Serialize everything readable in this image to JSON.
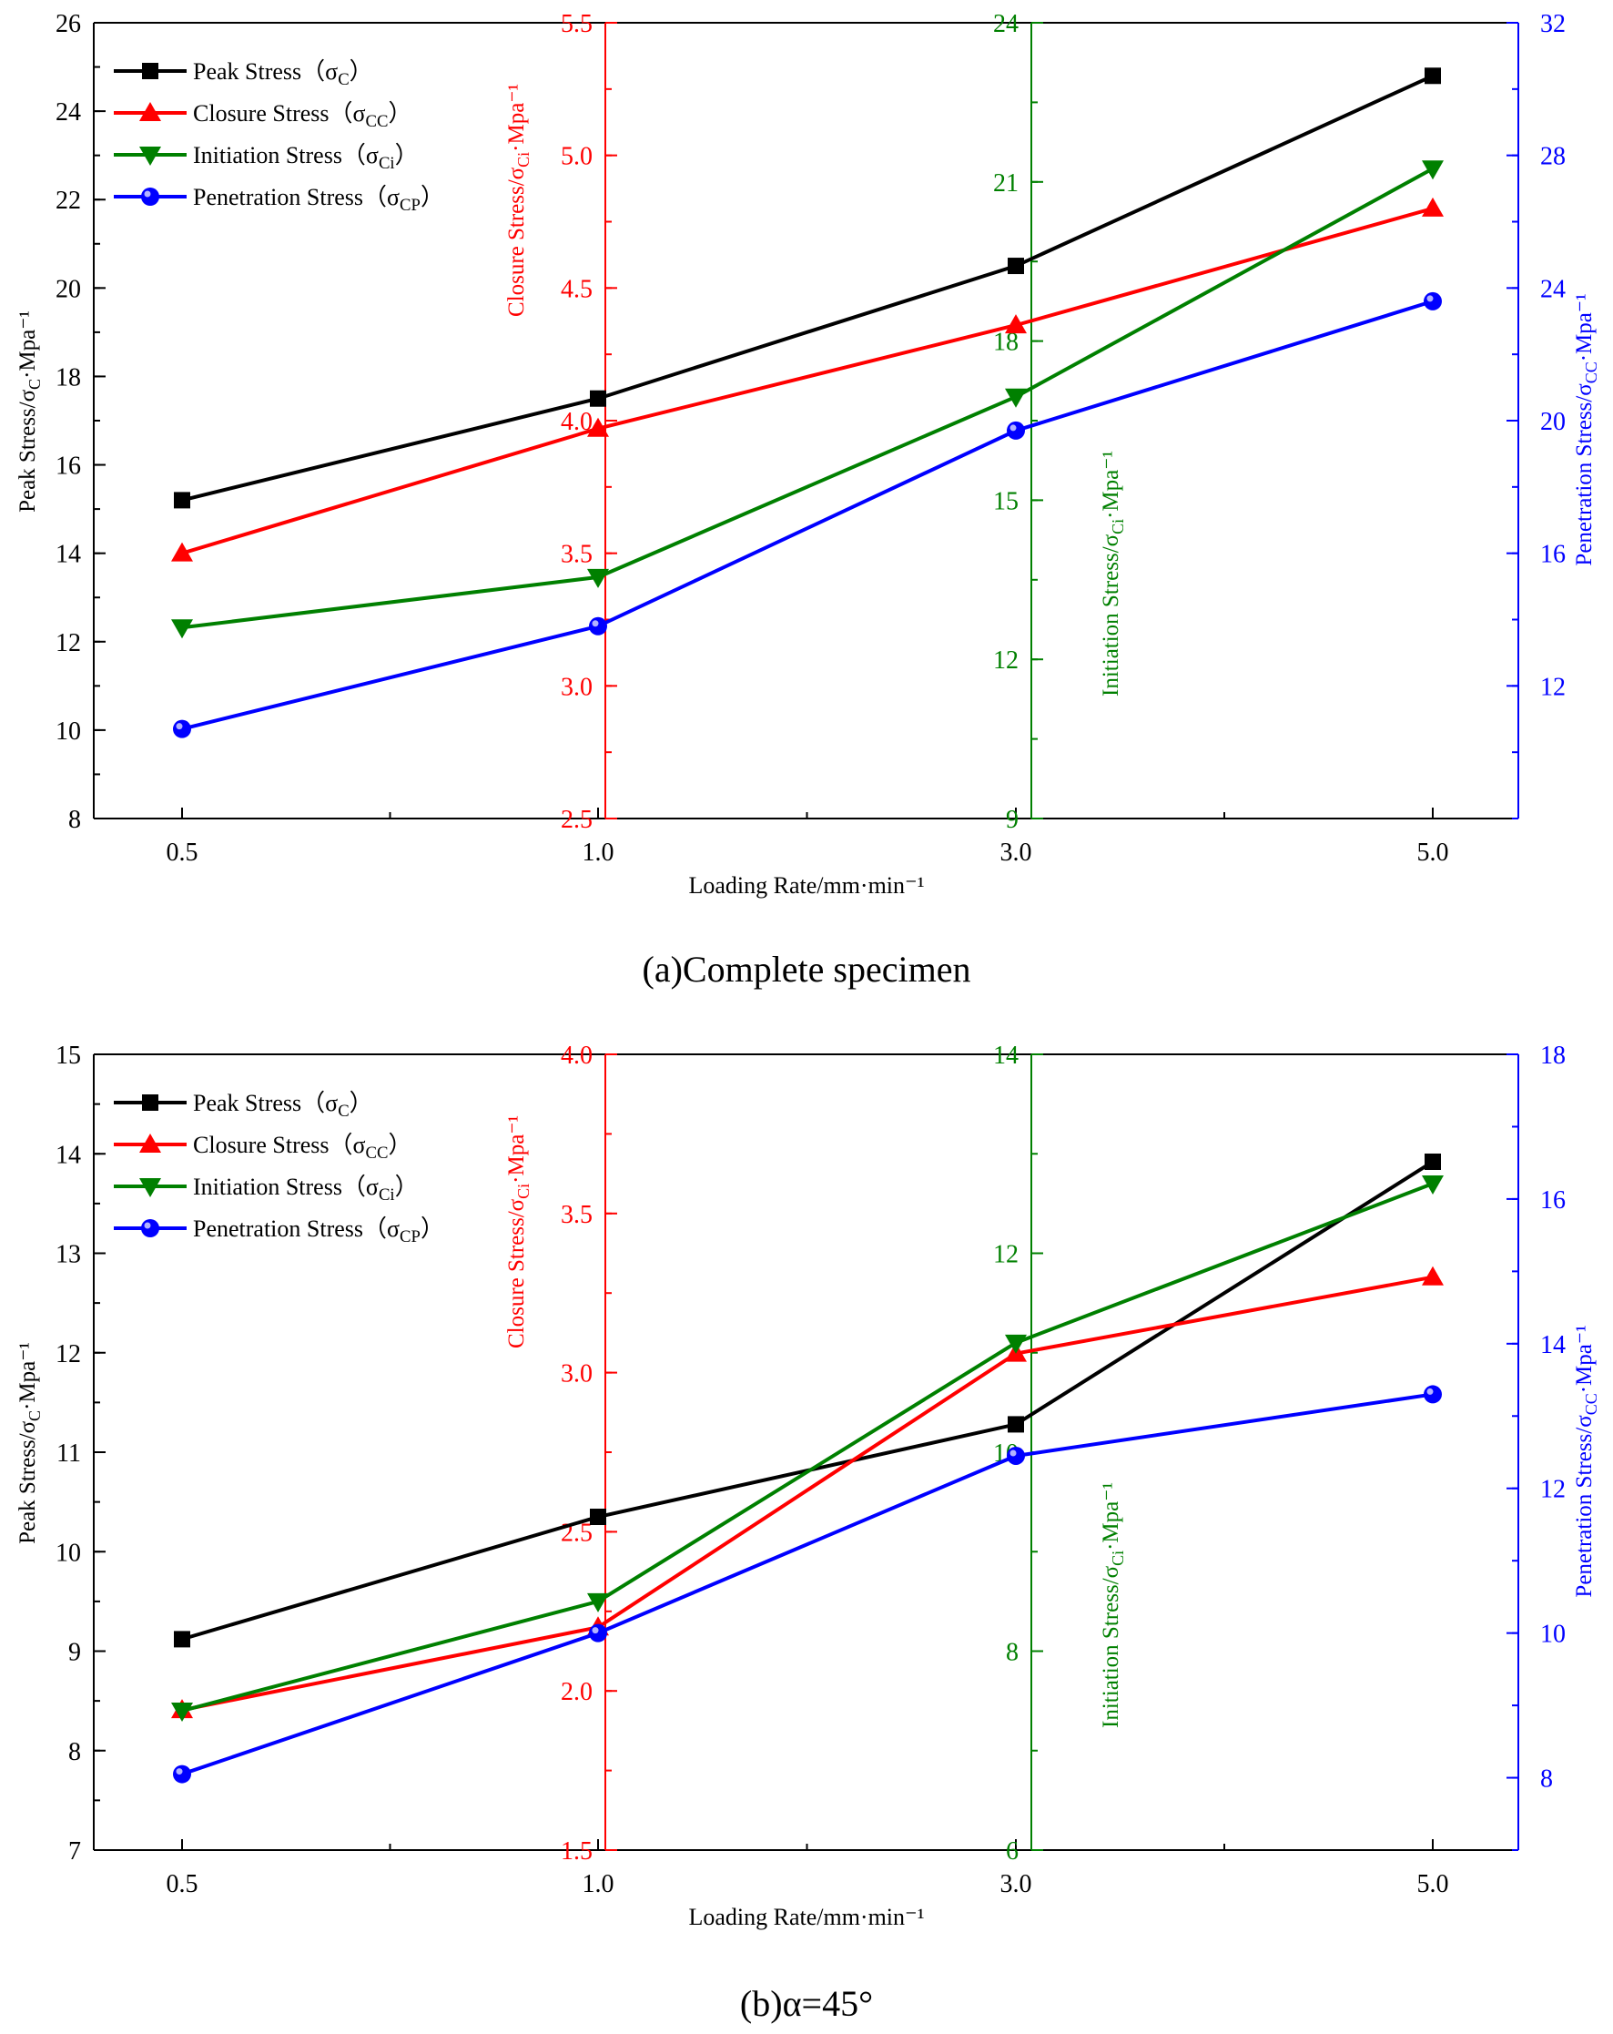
{
  "figure": {
    "captions": [
      "(a)Complete specimen",
      "(b)α=45°"
    ]
  },
  "colors": {
    "peak": "#000000",
    "closure": "#ff0000",
    "initiation": "#008000",
    "penetration": "#0000ff"
  },
  "chart_data": [
    {
      "type": "line",
      "caption": "(a)Complete specimen",
      "xlabel": "Loading Rate/mm·min⁻¹",
      "categories": [
        "0.5",
        "1.0",
        "3.0",
        "5.0"
      ],
      "axes": {
        "peak": {
          "label": "Peak Stress/σC·Mpa⁻¹",
          "position": "left",
          "ylim": [
            8,
            26
          ],
          "ticks": [
            8,
            10,
            12,
            14,
            16,
            18,
            20,
            22,
            24,
            26
          ],
          "color": "#000000"
        },
        "closure": {
          "label": "Closure Stress/σCi·Mpa⁻¹",
          "position": "inner-x-1.0",
          "ylim": [
            2.5,
            5.5
          ],
          "ticks": [
            2.5,
            3.0,
            3.5,
            4.0,
            4.5,
            5.0,
            5.5
          ],
          "color": "#ff0000"
        },
        "initiation": {
          "label": "Initiation Stress/σCi·Mpa⁻¹",
          "position": "inner-x-3.0",
          "ylim": [
            9,
            24
          ],
          "ticks": [
            9,
            12,
            15,
            18,
            21,
            24
          ],
          "color": "#008000"
        },
        "penetration": {
          "label": "Penetration Stress/σCC·Mpa⁻¹",
          "position": "right",
          "ylim": [
            8,
            32
          ],
          "ticks": [
            12,
            16,
            20,
            24,
            28,
            32
          ],
          "color": "#0000ff"
        }
      },
      "series": [
        {
          "key": "peak",
          "name": "Peak Stress（σC）",
          "marker": "square",
          "values": [
            15.2,
            17.5,
            20.5,
            24.8
          ]
        },
        {
          "key": "closure",
          "name": "Closure Stress（σCC）",
          "marker": "triangle-up",
          "values": [
            3.5,
            3.97,
            4.36,
            4.8
          ]
        },
        {
          "key": "initiation",
          "name": "Initiation Stress（σCi）",
          "marker": "triangle-down",
          "values": [
            12.6,
            13.55,
            16.95,
            21.25
          ]
        },
        {
          "key": "penetration",
          "name": "Penetration Stress（σCP）",
          "marker": "circle",
          "values": [
            10.7,
            13.8,
            19.7,
            23.6
          ]
        }
      ],
      "legend": "top-left"
    },
    {
      "type": "line",
      "caption": "(b)α=45°",
      "xlabel": "Loading Rate/mm·min⁻¹",
      "categories": [
        "0.5",
        "1.0",
        "3.0",
        "5.0"
      ],
      "axes": {
        "peak": {
          "label": "Peak Stress/σC·Mpa⁻¹",
          "position": "left",
          "ylim": [
            7,
            15
          ],
          "ticks": [
            7,
            8,
            9,
            10,
            11,
            12,
            13,
            14,
            15
          ],
          "color": "#000000"
        },
        "closure": {
          "label": "Closure Stress/σCi·Mpa⁻¹",
          "position": "inner-x-1.0",
          "ylim": [
            1.5,
            4.0
          ],
          "ticks": [
            1.5,
            2.0,
            2.5,
            3.0,
            3.5,
            4.0
          ],
          "color": "#ff0000"
        },
        "initiation": {
          "label": "Initiation Stress/σCi·Mpa⁻¹",
          "position": "inner-x-3.0",
          "ylim": [
            6,
            14
          ],
          "ticks": [
            6,
            8,
            10,
            12,
            14
          ],
          "color": "#008000"
        },
        "penetration": {
          "label": "Penetration Stress/σCC·Mpa⁻¹",
          "position": "right",
          "ylim": [
            7,
            18
          ],
          "ticks": [
            8,
            10,
            12,
            14,
            16,
            18
          ],
          "color": "#0000ff"
        }
      },
      "series": [
        {
          "key": "peak",
          "name": "Peak Stress（σC）",
          "marker": "square",
          "values": [
            9.12,
            10.35,
            11.28,
            13.92
          ]
        },
        {
          "key": "closure",
          "name": "Closure Stress（σCC）",
          "marker": "triangle-up",
          "values": [
            1.94,
            2.2,
            3.06,
            3.3
          ]
        },
        {
          "key": "initiation",
          "name": "Initiation Stress（σCi）",
          "marker": "triangle-down",
          "values": [
            7.4,
            8.5,
            11.1,
            12.7
          ]
        },
        {
          "key": "penetration",
          "name": "Penetration Stress（σCP）",
          "marker": "circle",
          "values": [
            8.05,
            10.0,
            12.45,
            13.3
          ]
        }
      ],
      "legend": "top-left"
    }
  ]
}
